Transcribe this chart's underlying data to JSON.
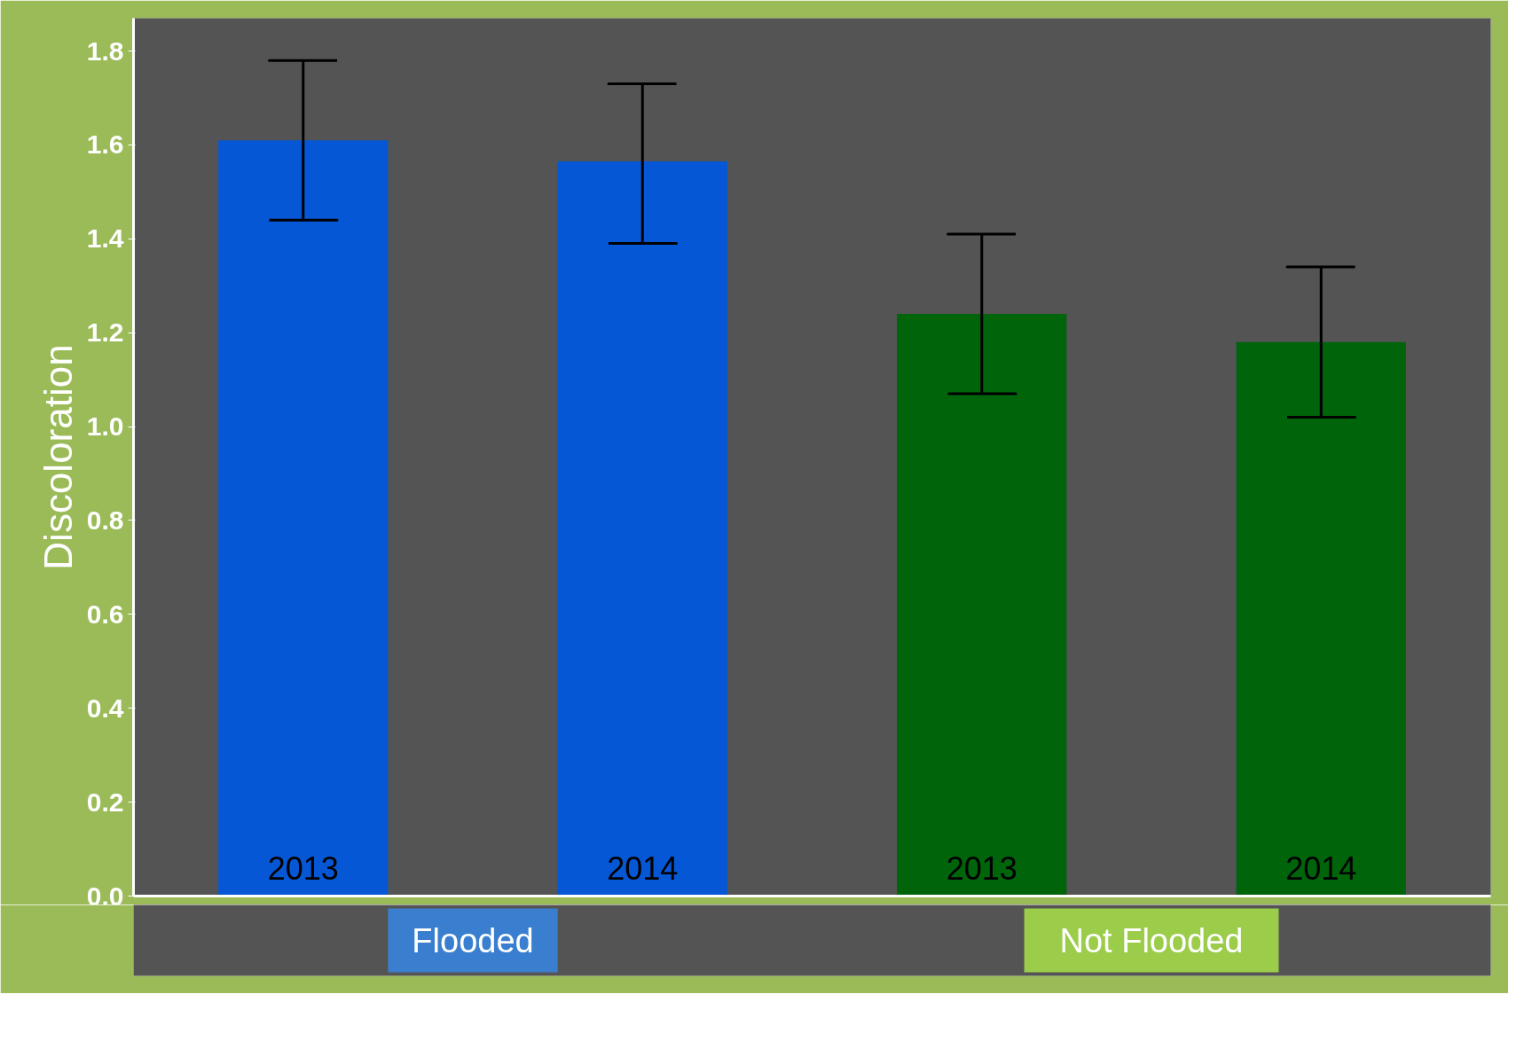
{
  "chart_data": {
    "type": "bar",
    "ylabel": "Discoloration",
    "categories": [
      "2013",
      "2014",
      "2013",
      "2014"
    ],
    "values": [
      1.61,
      1.565,
      1.24,
      1.18
    ],
    "colors": [
      "#0557d5",
      "#0557d5",
      "#00640a",
      "#00640a"
    ],
    "errors": [
      [
        1.44,
        1.78
      ],
      [
        1.39,
        1.73
      ],
      [
        1.07,
        1.41
      ],
      [
        1.02,
        1.34
      ]
    ],
    "annotations": [
      "Flooded",
      "Not Flooded"
    ],
    "ylim": [
      0,
      1.87
    ],
    "yticks": [
      {
        "value": 0,
        "label": "0.0"
      },
      {
        "value": 0.2,
        "label": "0.2"
      },
      {
        "value": 0.4,
        "label": "0.4"
      },
      {
        "value": 0.6,
        "label": "0.6"
      },
      {
        "value": 0.8,
        "label": "0.8"
      },
      {
        "value": 1.0,
        "label": "1.0"
      },
      {
        "value": 1.2,
        "label": "1.2"
      },
      {
        "value": 1.4,
        "label": "1.4"
      },
      {
        "value": 1.6,
        "label": "1.6"
      },
      {
        "value": 1.8,
        "label": "1.8"
      }
    ],
    "grid": false
  }
}
